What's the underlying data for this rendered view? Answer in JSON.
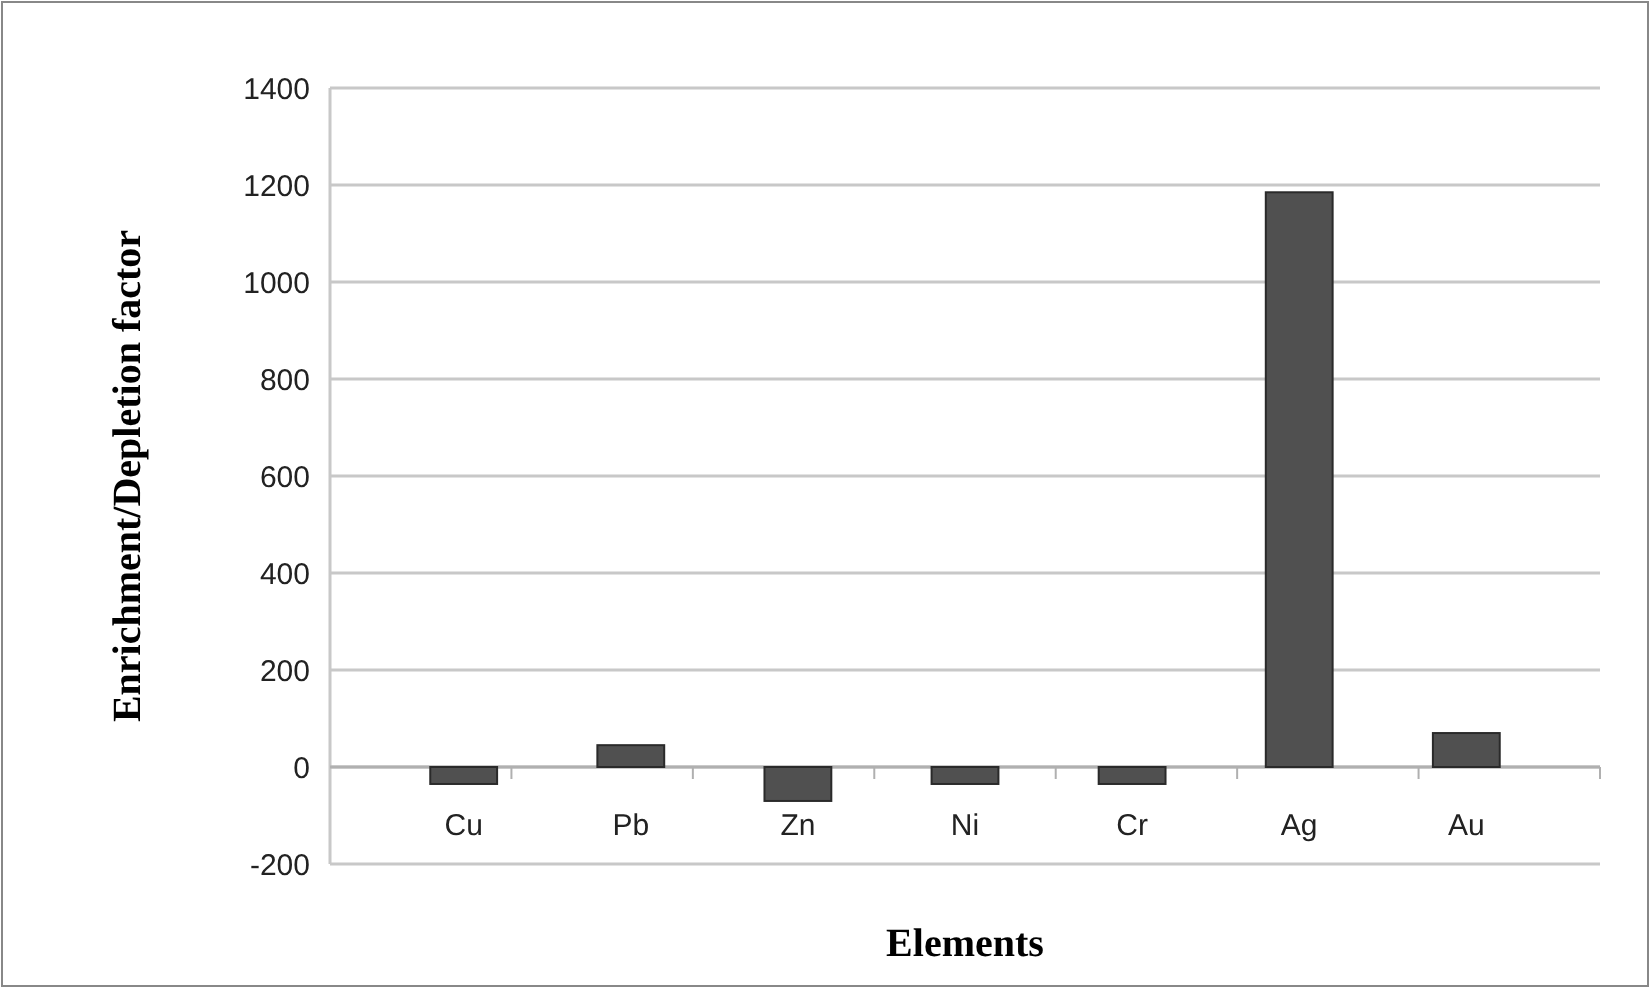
{
  "chart_data": {
    "type": "bar",
    "xlabel": "Elements",
    "ylabel": "Enrichment/Depletion factor",
    "categories": [
      "Cu",
      "Pb",
      "Zn",
      "Ni",
      "Cr",
      "Ag",
      "Au"
    ],
    "values": [
      -35,
      45,
      -70,
      -35,
      -35,
      1185,
      70
    ],
    "color": "#505050",
    "ylim": [
      -200,
      1400
    ],
    "yticks": [
      -200,
      0,
      200,
      400,
      600,
      800,
      1000,
      1200,
      1400
    ],
    "grid": "y"
  }
}
